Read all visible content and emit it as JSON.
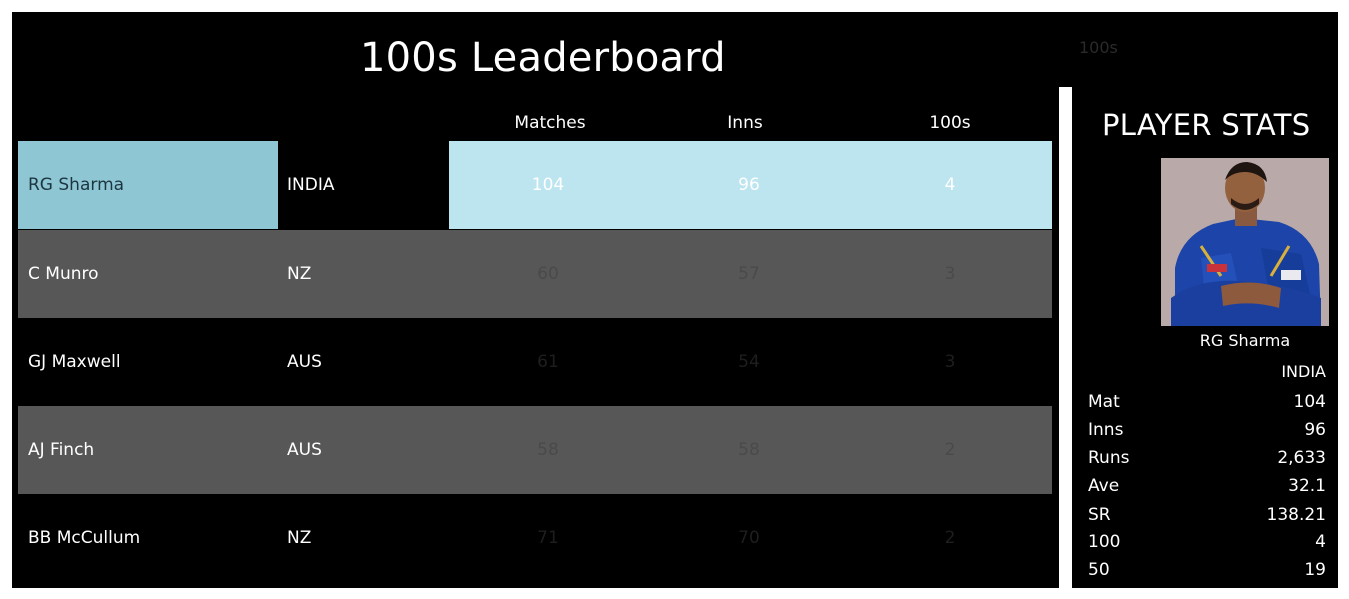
{
  "leaderboard": {
    "title": "100s Leaderboard",
    "faint_label": "100s",
    "columns": {
      "matches": "Matches",
      "inns": "Inns",
      "hundreds": "100s"
    },
    "rows": [
      {
        "name": "RG Sharma",
        "country": "INDIA",
        "matches": "104",
        "inns": "96",
        "hundreds": "4",
        "selected": true
      },
      {
        "name": "C Munro",
        "country": "NZ",
        "matches": "60",
        "inns": "57",
        "hundreds": "3"
      },
      {
        "name": "GJ Maxwell",
        "country": "AUS",
        "matches": "61",
        "inns": "54",
        "hundreds": "3"
      },
      {
        "name": "AJ Finch",
        "country": "AUS",
        "matches": "58",
        "inns": "58",
        "hundreds": "2"
      },
      {
        "name": "BB McCullum",
        "country": "NZ",
        "matches": "71",
        "inns": "70",
        "hundreds": "2"
      }
    ]
  },
  "player_stats": {
    "title": "PLAYER STATS",
    "player": "RG Sharma",
    "country": "INDIA",
    "stats": [
      {
        "label": "Mat",
        "value": "104"
      },
      {
        "label": "Inns",
        "value": "96"
      },
      {
        "label": "Runs",
        "value": "2,633"
      },
      {
        "label": "Ave",
        "value": "32.1"
      },
      {
        "label": "SR",
        "value": "138.21"
      },
      {
        "label": "100",
        "value": "4"
      },
      {
        "label": "50",
        "value": "19"
      }
    ]
  },
  "colors": {
    "background": "#000000",
    "selected_name": "#8ec6d4",
    "selected_values": "#bde5f0",
    "alt_row": "#575757"
  }
}
